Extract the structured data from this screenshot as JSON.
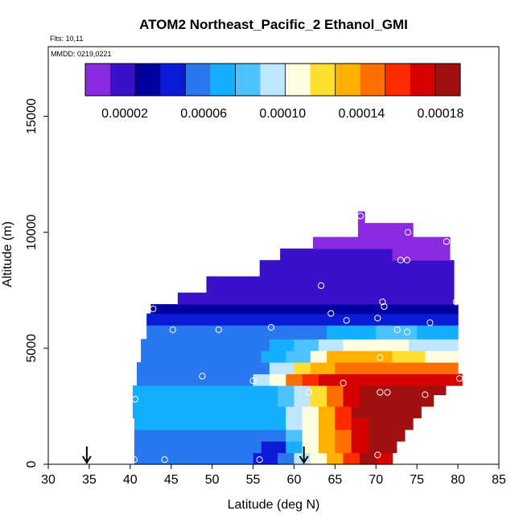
{
  "chart_data": {
    "type": "heatmap",
    "title": "ATOM2 Northeast_Pacific_2 Ethanol_GMI",
    "annotations": [
      "Flts: 10,11",
      "MMDD: 0219,0221"
    ],
    "xlabel": "Latitude (deg N)",
    "ylabel": "Altitude (m)",
    "xlim": [
      30,
      85
    ],
    "ylim": [
      0,
      18000
    ],
    "x_ticks": [
      "30",
      "35",
      "40",
      "45",
      "50",
      "55",
      "60",
      "65",
      "70",
      "75",
      "80",
      "85"
    ],
    "y_ticks": [
      "0",
      "5000",
      "10000",
      "15000"
    ],
    "grid": false,
    "colorbar": {
      "placement": "top-inside",
      "min": 0.0,
      "max": 0.00019,
      "tick_labels": [
        "0.00002",
        "0.00006",
        "0.00010",
        "0.00014",
        "0.00018"
      ],
      "colors": [
        "#8a2be2",
        "#3a10c8",
        "#0000a0",
        "#0a1ad6",
        "#2a78f0",
        "#14b0ff",
        "#4cc2ff",
        "#bfe6ff",
        "#fffde0",
        "#ffe030",
        "#ffb000",
        "#ff7000",
        "#ff2a00",
        "#d60000",
        "#a01010"
      ]
    },
    "markers": [
      {
        "lat": 34.7,
        "label": "↓"
      },
      {
        "lat": 61.2,
        "label": "↓"
      }
    ],
    "layers": [
      {
        "y0": 0,
        "y1": 500,
        "x0": 40.5,
        "x1": 72,
        "segments": [
          [
            40.5,
            5.2e-05
          ],
          [
            55,
            4e-05
          ],
          [
            58,
            5.5e-05
          ],
          [
            60,
            9e-05
          ],
          [
            62,
            0.00011
          ],
          [
            64,
            0.000135
          ],
          [
            66,
            0.00016
          ],
          [
            68,
            0.00018
          ],
          [
            70,
            0.000175
          ]
        ]
      },
      {
        "y0": 500,
        "y1": 1000,
        "x0": 40.5,
        "x1": 72.5,
        "segments": [
          [
            40.5,
            5.2e-05
          ],
          [
            56,
            5e-05
          ],
          [
            59,
            7.5e-05
          ],
          [
            61,
            0.00011
          ],
          [
            63,
            0.00013
          ],
          [
            65,
            0.00015
          ],
          [
            67,
            0.00017
          ],
          [
            69,
            0.00018
          ]
        ]
      },
      {
        "y0": 1000,
        "y1": 1500,
        "x0": 40.5,
        "x1": 73.5,
        "segments": [
          [
            40.5,
            5.8e-05
          ],
          [
            57,
            6e-05
          ],
          [
            59,
            8.5e-05
          ],
          [
            61,
            0.00011
          ],
          [
            63,
            0.00013
          ],
          [
            65,
            0.00015
          ],
          [
            67,
            0.000172
          ],
          [
            69,
            0.000185
          ]
        ]
      },
      {
        "y0": 1500,
        "y1": 2000,
        "x0": 40.5,
        "x1": 74.5,
        "segments": [
          [
            40.5,
            6.5e-05
          ],
          [
            57,
            7e-05
          ],
          [
            59,
            9e-05
          ],
          [
            61,
            0.000112
          ],
          [
            63,
            0.000132
          ],
          [
            65,
            0.000152
          ],
          [
            67,
            0.000175
          ],
          [
            69,
            0.000186
          ]
        ]
      },
      {
        "y0": 2000,
        "y1": 2500,
        "x0": 40.3,
        "x1": 75.5,
        "segments": [
          [
            40.3,
            6.8e-05
          ],
          [
            57,
            7.5e-05
          ],
          [
            59,
            9.2e-05
          ],
          [
            61,
            0.000112
          ],
          [
            63,
            0.000132
          ],
          [
            65,
            0.000155
          ],
          [
            67,
            0.000178
          ],
          [
            69,
            0.000186
          ]
        ]
      },
      {
        "y0": 2500,
        "y1": 3000,
        "x0": 40.3,
        "x1": 77,
        "segments": [
          [
            40.3,
            7.2e-05
          ],
          [
            58,
            7.8e-05
          ],
          [
            60,
            9.5e-05
          ],
          [
            62,
            0.000118
          ],
          [
            64,
            0.00014
          ],
          [
            66,
            0.000165
          ],
          [
            68,
            0.000182
          ]
        ]
      },
      {
        "y0": 3000,
        "y1": 3400,
        "x0": 40.3,
        "x1": 78.5,
        "segments": [
          [
            40.3,
            6.6e-05
          ],
          [
            58,
            8e-05
          ],
          [
            60,
            0.0001
          ],
          [
            62,
            0.000125
          ],
          [
            64,
            0.00015
          ],
          [
            66,
            0.000175
          ],
          [
            68,
            0.000185
          ]
        ]
      },
      {
        "y0": 3400,
        "y1": 3900,
        "x0": 40.8,
        "x1": 80.5,
        "segments": [
          [
            40.8,
            5.5e-05
          ],
          [
            52,
            6.2e-05
          ],
          [
            55,
            9e-05
          ],
          [
            57,
            0.00011
          ],
          [
            59,
            0.00014
          ],
          [
            61,
            0.00016
          ],
          [
            63,
            0.000172
          ],
          [
            65,
            0.000168
          ]
        ]
      },
      {
        "y0": 3900,
        "y1": 4400,
        "x0": 40.8,
        "x1": 80,
        "segments": [
          [
            40.8,
            5.5e-05
          ],
          [
            54,
            6.2e-05
          ],
          [
            57,
            9e-05
          ],
          [
            60,
            0.000118
          ],
          [
            62,
            0.000132
          ],
          [
            65,
            0.000145
          ],
          [
            70,
            0.000148
          ],
          [
            75,
            0.00014
          ]
        ]
      },
      {
        "y0": 4400,
        "y1": 4900,
        "x0": 41.3,
        "x1": 80,
        "segments": [
          [
            41.3,
            6e-05
          ],
          [
            56,
            6.5e-05
          ],
          [
            59,
            8.8e-05
          ],
          [
            62,
            0.00011
          ],
          [
            64,
            0.000128
          ],
          [
            67,
            0.000134
          ],
          [
            72,
            0.000125
          ],
          [
            76,
            0.000108
          ]
        ]
      },
      {
        "y0": 4900,
        "y1": 5400,
        "x0": 41.3,
        "x1": 80,
        "segments": [
          [
            41.3,
            6e-05
          ],
          [
            57,
            6.8e-05
          ],
          [
            60,
            8e-05
          ],
          [
            63,
            9.8e-05
          ],
          [
            66,
            0.00011
          ],
          [
            70,
            0.000104
          ],
          [
            74,
            9.4e-05
          ]
        ]
      },
      {
        "y0": 5400,
        "y1": 6000,
        "x0": 42,
        "x1": 80,
        "segments": [
          [
            42,
            5.8e-05
          ],
          [
            60,
            6.2e-05
          ],
          [
            64,
            7e-05
          ],
          [
            70,
            7.6e-05
          ],
          [
            75,
            7.2e-05
          ]
        ]
      },
      {
        "y0": 6000,
        "y1": 6500,
        "x0": 42,
        "x1": 80,
        "segments": [
          [
            42,
            4e-05
          ],
          [
            55,
            4.4e-05
          ],
          [
            62,
            5e-05
          ],
          [
            70,
            4.6e-05
          ]
        ]
      },
      {
        "y0": 6500,
        "y1": 6900,
        "x0": 42.5,
        "x1": 80,
        "segments": [
          [
            42.5,
            2.8e-05
          ],
          [
            55,
            2.6e-05
          ],
          [
            65,
            3e-05
          ],
          [
            72,
            2.8e-05
          ]
        ]
      },
      {
        "y0": 6900,
        "y1": 7400,
        "x0": 45.8,
        "x1": 79.5,
        "segments": [
          [
            45.8,
            2e-05
          ],
          [
            55,
            2.1e-05
          ],
          [
            65,
            2.2e-05
          ],
          [
            72,
            2.3e-05
          ]
        ]
      },
      {
        "y0": 7400,
        "y1": 8100,
        "x0": 49.3,
        "x1": 79.5,
        "segments": [
          [
            49.3,
            2.1e-05
          ],
          [
            58,
            2.2e-05
          ],
          [
            66,
            2.3e-05
          ],
          [
            74,
            2.4e-05
          ]
        ]
      },
      {
        "y0": 8100,
        "y1": 8800,
        "x0": 55.8,
        "x1": 79.5,
        "segments": [
          [
            55.8,
            2.2e-05
          ],
          [
            62,
            2.2e-05
          ],
          [
            70,
            2e-05
          ],
          [
            76,
            2.1e-05
          ]
        ]
      },
      {
        "y0": 8800,
        "y1": 9300,
        "x0": 58.3,
        "x1": 79,
        "segments": [
          [
            58.3,
            1.6e-05
          ],
          [
            66,
            1.3e-05
          ],
          [
            72,
            1.2e-05
          ]
        ]
      },
      {
        "y0": 9300,
        "y1": 9800,
        "x0": 62.3,
        "x1": 79,
        "segments": [
          [
            62.3,
            1.2e-05
          ],
          [
            68,
            1e-05
          ],
          [
            74,
            1.1e-05
          ]
        ]
      },
      {
        "y0": 9800,
        "y1": 10400,
        "x0": 67.8,
        "x1": 74.5,
        "segments": [
          [
            67.8,
            8e-06
          ],
          [
            71,
            7e-06
          ]
        ]
      },
      {
        "y0": 10400,
        "y1": 10900,
        "x0": 67.8,
        "x1": 68.6,
        "segments": [
          [
            67.8,
            6e-06
          ]
        ]
      }
    ],
    "points": [
      [
        40.5,
        200
      ],
      [
        44.2,
        200
      ],
      [
        55.8,
        200
      ],
      [
        70.2,
        400
      ],
      [
        40.6,
        2800
      ],
      [
        48.8,
        3800
      ],
      [
        55.0,
        3600
      ],
      [
        61.8,
        3100
      ],
      [
        66.0,
        3500
      ],
      [
        70.5,
        3100
      ],
      [
        71.4,
        3100
      ],
      [
        76.0,
        3000
      ],
      [
        80.2,
        3700
      ],
      [
        45.2,
        5800
      ],
      [
        50.8,
        5800
      ],
      [
        57.2,
        5900
      ],
      [
        72.6,
        5800
      ],
      [
        73.8,
        5700
      ],
      [
        70.5,
        4600
      ],
      [
        64.5,
        6500
      ],
      [
        66.4,
        6200
      ],
      [
        70.2,
        6300
      ],
      [
        76.6,
        6100
      ],
      [
        42.8,
        6700
      ],
      [
        71.0,
        6800
      ],
      [
        70.8,
        7000
      ],
      [
        79.8,
        7000
      ],
      [
        63.3,
        7700
      ],
      [
        73.0,
        8800
      ],
      [
        73.8,
        8800
      ],
      [
        78.6,
        9600
      ],
      [
        73.9,
        10000
      ],
      [
        68.1,
        10700
      ]
    ]
  }
}
